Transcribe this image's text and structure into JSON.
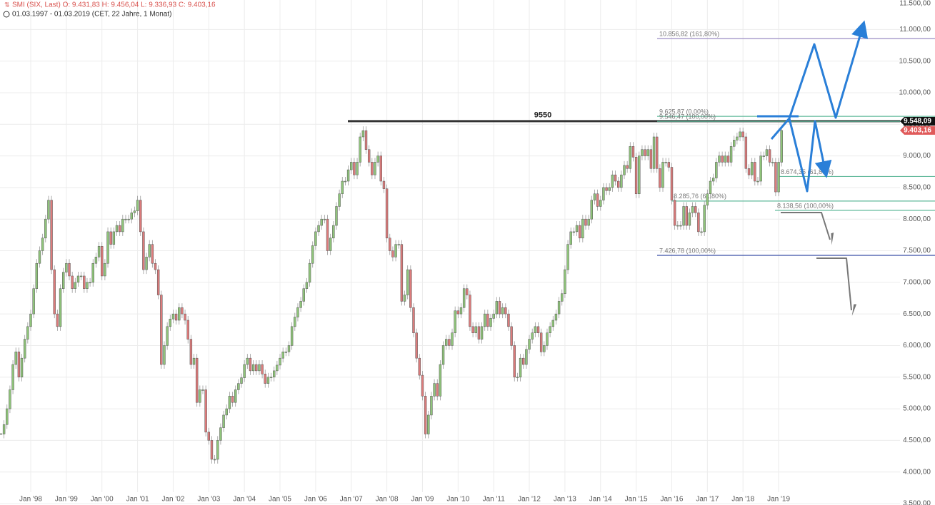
{
  "chart_data": {
    "type": "candlestick",
    "title": "SMI (SIX, Last) O: 9.431,83 H: 9.456,04 L: 9.336,93 C: 9.403,16",
    "subtitle": "01.03.1997 - 01.03.2019 (CET, 22 Jahre, 1 Monat)",
    "categories": [
      null,
      null,
      null,
      null,
      null,
      null,
      null,
      null,
      null,
      null,
      "Jan '98",
      null,
      null,
      null,
      null,
      null,
      null,
      null,
      null,
      null,
      null,
      null,
      "Jan '99",
      null,
      null,
      null,
      null,
      null,
      null,
      null,
      null,
      null,
      null,
      null,
      "Jan '00",
      null,
      null,
      null,
      null,
      null,
      null,
      null,
      null,
      null,
      null,
      null,
      "Jan '01",
      null,
      null,
      null,
      null,
      null,
      null,
      null,
      null,
      null,
      null,
      null,
      "Jan '02",
      null,
      null,
      null,
      null,
      null,
      null,
      null,
      null,
      null,
      null,
      null,
      "Jan '03",
      null,
      null,
      null,
      null,
      null,
      null,
      null,
      null,
      null,
      null,
      null,
      "Jan '04",
      null,
      null,
      null,
      null,
      null,
      null,
      null,
      null,
      null,
      null,
      null,
      "Jan '05",
      null,
      null,
      null,
      null,
      null,
      null,
      null,
      null,
      null,
      null,
      null,
      "Jan '06",
      null,
      null,
      null,
      null,
      null,
      null,
      null,
      null,
      null,
      null,
      null,
      "Jan '07",
      null,
      null,
      null,
      null,
      null,
      null,
      null,
      null,
      null,
      null,
      null,
      "Jan '08",
      null,
      null,
      null,
      null,
      null,
      null,
      null,
      null,
      null,
      null,
      null,
      "Jan '09",
      null,
      null,
      null,
      null,
      null,
      null,
      null,
      null,
      null,
      null,
      null,
      "Jan '10",
      null,
      null,
      null,
      null,
      null,
      null,
      null,
      null,
      null,
      null,
      null,
      "Jan '11",
      null,
      null,
      null,
      null,
      null,
      null,
      null,
      null,
      null,
      null,
      null,
      "Jan '12",
      null,
      null,
      null,
      null,
      null,
      null,
      null,
      null,
      null,
      null,
      null,
      "Jan '13",
      null,
      null,
      null,
      null,
      null,
      null,
      null,
      null,
      null,
      null,
      null,
      "Jan '14",
      null,
      null,
      null,
      null,
      null,
      null,
      null,
      null,
      null,
      null,
      null,
      "Jan '15",
      null,
      null,
      null,
      null,
      null,
      null,
      null,
      null,
      null,
      null,
      null,
      "Jan '16",
      null,
      null,
      null,
      null,
      null,
      null,
      null,
      null,
      null,
      null,
      null,
      "Jan '17",
      null,
      null,
      null,
      null,
      null,
      null,
      null,
      null,
      null,
      null,
      null,
      "Jan '18",
      null,
      null,
      null,
      null,
      null,
      null,
      null,
      null,
      null,
      null,
      null,
      "Jan '19",
      null
    ],
    "close": [
      4600,
      4750,
      5000,
      5300,
      5700,
      5900,
      5500,
      5800,
      6100,
      6300,
      6500,
      6900,
      7300,
      7500,
      7700,
      8000,
      8300,
      7200,
      6500,
      6300,
      6900,
      7160,
      7300,
      7100,
      6900,
      7000,
      7100,
      7100,
      6900,
      7000,
      7000,
      7300,
      7400,
      7570,
      7100,
      7300,
      7800,
      7600,
      7800,
      7900,
      7800,
      8000,
      8000,
      8000,
      8100,
      8130,
      8300,
      7800,
      7200,
      7400,
      7600,
      7300,
      7200,
      6800,
      5700,
      6000,
      6300,
      6420,
      6500,
      6400,
      6600,
      6500,
      6400,
      6100,
      5700,
      5800,
      5100,
      5300,
      5300,
      4630,
      4500,
      4200,
      4200,
      4500,
      4700,
      4900,
      5000,
      5200,
      5100,
      5300,
      5400,
      5490,
      5700,
      5800,
      5600,
      5700,
      5600,
      5700,
      5550,
      5400,
      5500,
      5500,
      5600,
      5690,
      5800,
      5900,
      5900,
      6000,
      6300,
      6450,
      6600,
      6700,
      6900,
      7000,
      7300,
      7580,
      7800,
      7900,
      8000,
      8000,
      7500,
      7700,
      7900,
      8200,
      8400,
      8600,
      8600,
      8780,
      8900,
      8700,
      8900,
      9300,
      9400,
      9100,
      8900,
      8700,
      8900,
      9000,
      8600,
      8480,
      7700,
      7500,
      7400,
      7600,
      7600,
      6700,
      6800,
      7200,
      6600,
      6200,
      5800,
      5530,
      5200,
      4600,
      4900,
      5200,
      5400,
      5200,
      5700,
      6000,
      6100,
      6000,
      6200,
      6550,
      6500,
      6600,
      6900,
      6800,
      6300,
      6200,
      6300,
      6100,
      6300,
      6500,
      6300,
      6430,
      6500,
      6700,
      6500,
      6600,
      6500,
      6300,
      6000,
      5500,
      5500,
      5800,
      5700,
      5940,
      6100,
      6200,
      6300,
      6200,
      5900,
      6000,
      6200,
      6300,
      6400,
      6500,
      6700,
      6820,
      7200,
      7600,
      7800,
      7800,
      7900,
      7700,
      8000,
      7900,
      8000,
      8300,
      8400,
      8200,
      8300,
      8500,
      8450,
      8500,
      8700,
      8600,
      8500,
      8700,
      8850,
      8800,
      9150,
      8980,
      8400,
      9000,
      9100,
      9000,
      9100,
      8800,
      9300,
      8800,
      8500,
      8900,
      8900,
      8820,
      8300,
      7900,
      7900,
      7900,
      8200,
      7900,
      8100,
      8200,
      8100,
      7800,
      7800,
      8220,
      8400,
      8600,
      8650,
      8900,
      9000,
      8900,
      9000,
      8900,
      9150,
      9250,
      9300,
      9380,
      9300,
      8800,
      8700,
      8900,
      8600,
      8600,
      9000,
      9000,
      9100,
      8900,
      8900,
      8430,
      8900,
      9403.16
    ],
    "up_color": "#8fc47a",
    "down_color": "#dc7b7b",
    "ylim": [
      3500,
      11500
    ],
    "yticks": [
      {
        "value": 3500,
        "label": "3.500,00"
      },
      {
        "value": 4000,
        "label": "4.000,00"
      },
      {
        "value": 4500,
        "label": "4.500,00"
      },
      {
        "value": 5000,
        "label": "5.000,00"
      },
      {
        "value": 5500,
        "label": "5.500,00"
      },
      {
        "value": 6000,
        "label": "6.000,00"
      },
      {
        "value": 6500,
        "label": "6.500,00"
      },
      {
        "value": 7000,
        "label": "7.000,00"
      },
      {
        "value": 7500,
        "label": "7.500,00"
      },
      {
        "value": 8000,
        "label": "8.000,00"
      },
      {
        "value": 8500,
        "label": "8.500,00"
      },
      {
        "value": 9000,
        "label": "9.000,00"
      },
      {
        "value": 9500,
        "label": "9.500,00"
      },
      {
        "value": 10000,
        "label": "10.000,00"
      },
      {
        "value": 10500,
        "label": "10.500,00"
      },
      {
        "value": 11000,
        "label": "11.000,00"
      },
      {
        "value": 11500,
        "label": "11.500,00"
      }
    ],
    "grid": true,
    "levels": [
      {
        "value": 9550,
        "color": "#333333"
      },
      {
        "value": 10856.82,
        "label": "10.856,82 (161,80%)",
        "color": "#9b8cc4"
      },
      {
        "value": 9625.87,
        "label": "9.625,87 (0,00%)",
        "color": "#5fb89a"
      },
      {
        "value": 9546.47,
        "label": "9.546,47 (100,00%)",
        "color": "#5fb89a"
      },
      {
        "value": 8674.35,
        "label": "8.674,35 (61,80%)",
        "color": "#5fb89a"
      },
      {
        "value": 8285.76,
        "label": "8.285,76 (61,80%)",
        "color": "#5fb89a"
      },
      {
        "value": 8138.56,
        "label": "8.138,56 (100,00%)",
        "color": "#5fb89a"
      },
      {
        "value": 7426.78,
        "label": "7.426,78 (100,00%)",
        "color": "#3a4fa8"
      }
    ],
    "price_labels": [
      {
        "value": 9548.09,
        "label": "9.548,09",
        "color": "#111111"
      },
      {
        "value": 9403.16,
        "label": "9.403,16",
        "color": "#e05a5a"
      }
    ]
  }
}
